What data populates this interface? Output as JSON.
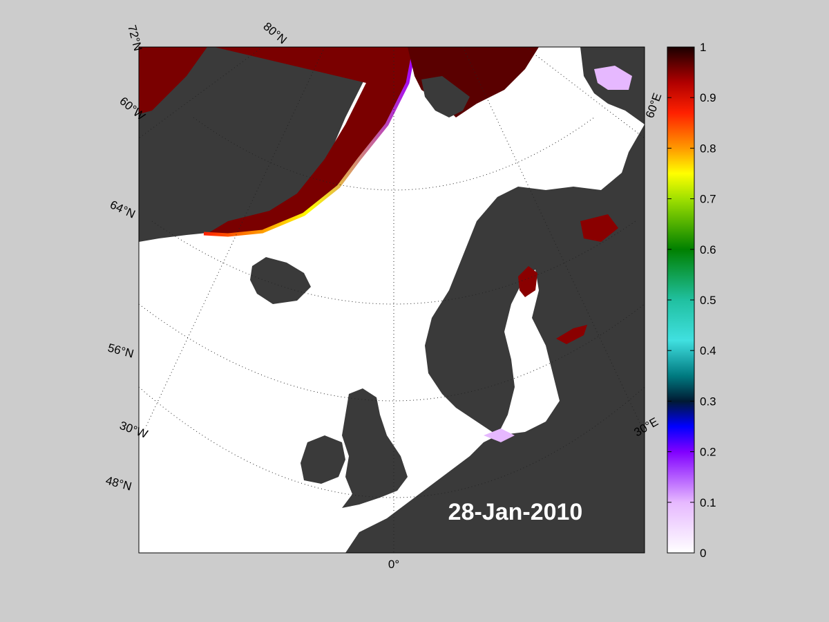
{
  "map": {
    "date_label": "28-Jan-2010",
    "graticule_labels": {
      "lat_72": "72°N",
      "lat_80": "80°N",
      "lat_64": "64°N",
      "lat_56": "56°N",
      "lat_48": "48°N",
      "lon_60w": "60°W",
      "lon_30w": "30°W",
      "lon_0": "0°",
      "lon_30e": "30°E",
      "lon_60e": "60°E"
    },
    "colors": {
      "land": "#3a3a3a",
      "ocean_open": "#ffffff",
      "ice_full": "#4a0000",
      "figure_bg": "#cccccc"
    }
  },
  "colorbar": {
    "min": 0,
    "max": 1,
    "tick_labels": [
      "1",
      "0.9",
      "0.8",
      "0.7",
      "0.6",
      "0.5",
      "0.4",
      "0.3",
      "0.2",
      "0.1",
      "0"
    ]
  }
}
